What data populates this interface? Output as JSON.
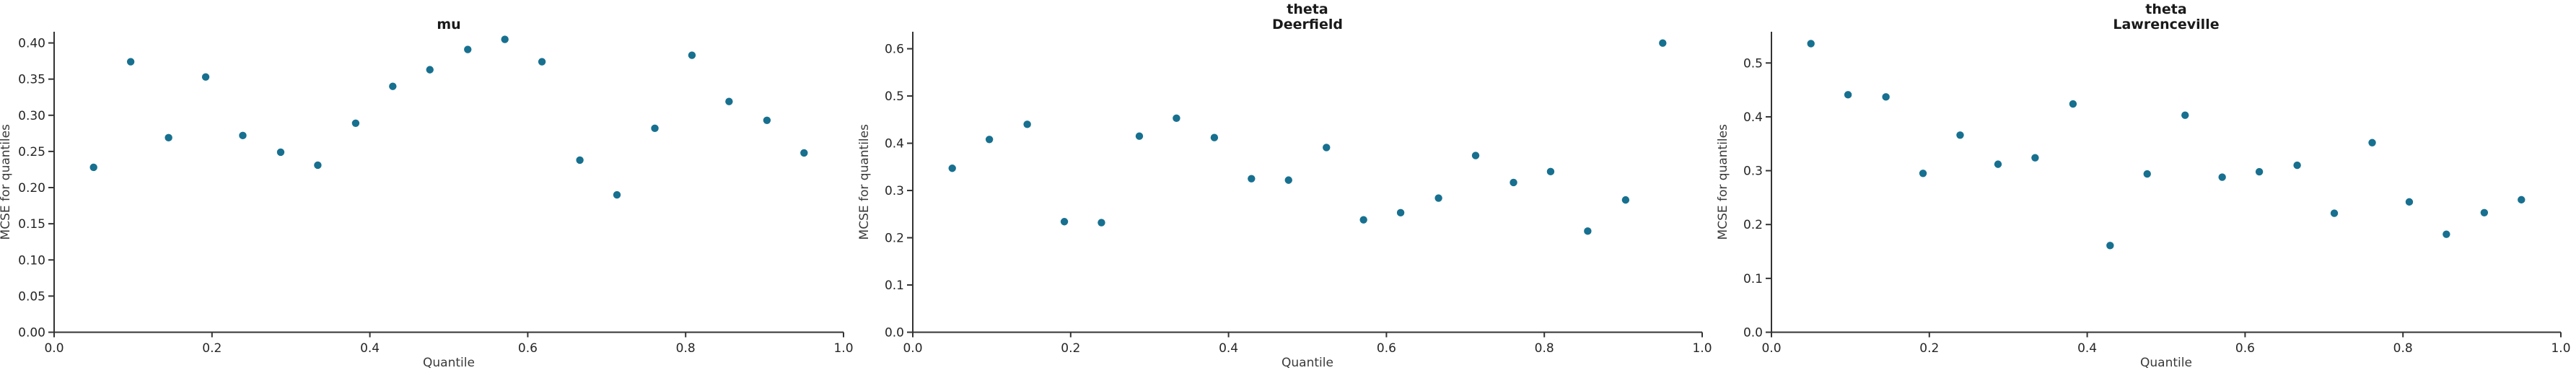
{
  "figure": {
    "background": "#ffffff",
    "point_color": "#17708f",
    "axis_color": "#333333",
    "tick_label_color": "#262626",
    "axis_label_color": "#3a3a3a",
    "title_color": "#1a1a1a"
  },
  "chart_data": [
    {
      "type": "scatter",
      "title": "mu",
      "title_lines": [
        "mu"
      ],
      "xlabel": "Quantile",
      "ylabel": "MCSE for quantiles",
      "legend": "none",
      "grid": false,
      "xlim": [
        0.0,
        1.0
      ],
      "ylim": [
        0.0,
        0.4155
      ],
      "xticks": [
        0.0,
        0.2,
        0.4,
        0.6,
        0.8,
        1.0
      ],
      "yticks": [
        0.0,
        0.05,
        0.1,
        0.15,
        0.2,
        0.25,
        0.3,
        0.35,
        0.4
      ],
      "xtick_decimals": 1,
      "ytick_decimals": 2,
      "x": [
        0.05,
        0.097,
        0.145,
        0.192,
        0.239,
        0.287,
        0.334,
        0.382,
        0.429,
        0.476,
        0.524,
        0.571,
        0.618,
        0.666,
        0.713,
        0.761,
        0.808,
        0.855,
        0.903,
        0.95
      ],
      "y": [
        0.228,
        0.374,
        0.269,
        0.353,
        0.272,
        0.249,
        0.231,
        0.289,
        0.34,
        0.363,
        0.391,
        0.405,
        0.374,
        0.238,
        0.19,
        0.282,
        0.383,
        0.319,
        0.293,
        0.248
      ]
    },
    {
      "type": "scatter",
      "title": "theta\nDeerfield",
      "title_lines": [
        "theta",
        "Deerfield"
      ],
      "xlabel": "Quantile",
      "ylabel": "MCSE for quantiles",
      "legend": "none",
      "grid": false,
      "xlim": [
        0.0,
        1.0
      ],
      "ylim": [
        0.0,
        0.636
      ],
      "xticks": [
        0.0,
        0.2,
        0.4,
        0.6,
        0.8,
        1.0
      ],
      "yticks": [
        0.0,
        0.1,
        0.2,
        0.3,
        0.4,
        0.5,
        0.6
      ],
      "xtick_decimals": 1,
      "ytick_decimals": 1,
      "x": [
        0.05,
        0.097,
        0.145,
        0.192,
        0.239,
        0.287,
        0.334,
        0.382,
        0.429,
        0.476,
        0.524,
        0.571,
        0.618,
        0.666,
        0.713,
        0.761,
        0.808,
        0.855,
        0.903,
        0.95
      ],
      "y": [
        0.347,
        0.408,
        0.44,
        0.234,
        0.232,
        0.415,
        0.453,
        0.412,
        0.325,
        0.322,
        0.391,
        0.238,
        0.253,
        0.284,
        0.374,
        0.317,
        0.34,
        0.214,
        0.28,
        0.612
      ]
    },
    {
      "type": "scatter",
      "title": "theta\nLawrenceville",
      "title_lines": [
        "theta",
        "Lawrenceville"
      ],
      "xlabel": "Quantile",
      "ylabel": "MCSE for quantiles",
      "legend": "none",
      "grid": false,
      "xlim": [
        0.0,
        1.0
      ],
      "ylim": [
        0.0,
        0.558
      ],
      "xticks": [
        0.0,
        0.2,
        0.4,
        0.6,
        0.8,
        1.0
      ],
      "yticks": [
        0.0,
        0.1,
        0.2,
        0.3,
        0.4,
        0.5
      ],
      "xtick_decimals": 1,
      "ytick_decimals": 1,
      "x": [
        0.05,
        0.097,
        0.145,
        0.192,
        0.239,
        0.287,
        0.334,
        0.382,
        0.429,
        0.476,
        0.524,
        0.571,
        0.618,
        0.666,
        0.713,
        0.761,
        0.808,
        0.855,
        0.903,
        0.95
      ],
      "y": [
        0.536,
        0.441,
        0.437,
        0.295,
        0.366,
        0.312,
        0.324,
        0.424,
        0.161,
        0.294,
        0.403,
        0.288,
        0.298,
        0.31,
        0.221,
        0.352,
        0.242,
        0.182,
        0.222,
        0.246
      ]
    }
  ]
}
